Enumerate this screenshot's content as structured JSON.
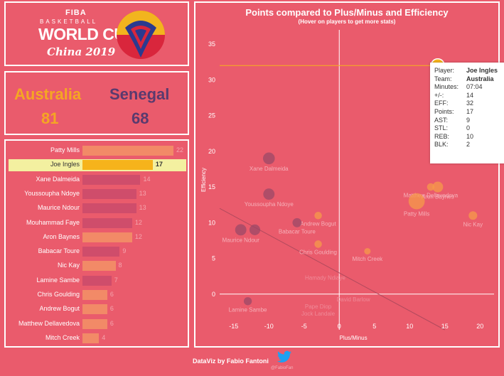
{
  "logo": {
    "fiba": "FIBA",
    "basketball": "BASKETBALL",
    "world_cup": "WORLD CUP",
    "china": "China 2019"
  },
  "match": {
    "team_a": "Australia",
    "team_b": "Senegal",
    "score_a": "81",
    "score_b": "68"
  },
  "colors": {
    "australia": "#f5a623",
    "senegal": "#5a3a6e",
    "aus_bar": "#f28a67",
    "sen_bar": "#cf4d6b",
    "highlight_bar": "#f6b31b",
    "aus_point": "#f59a4a",
    "sen_point": "#9b4867"
  },
  "points_bars": {
    "max": 22,
    "players": [
      {
        "name": "Patty Mills",
        "points": 22,
        "team": "Australia"
      },
      {
        "name": "Joe Ingles",
        "points": 17,
        "team": "Australia",
        "highlight": true
      },
      {
        "name": "Xane Dalmeida",
        "points": 14,
        "team": "Senegal"
      },
      {
        "name": "Youssoupha Ndoye",
        "points": 13,
        "team": "Senegal"
      },
      {
        "name": "Maurice Ndour",
        "points": 13,
        "team": "Senegal"
      },
      {
        "name": "Mouhammad Faye",
        "points": 12,
        "team": "Senegal"
      },
      {
        "name": "Aron Baynes",
        "points": 12,
        "team": "Australia"
      },
      {
        "name": "Babacar Toure",
        "points": 9,
        "team": "Senegal"
      },
      {
        "name": "Nic Kay",
        "points": 8,
        "team": "Australia"
      },
      {
        "name": "Lamine Sambe",
        "points": 7,
        "team": "Senegal"
      },
      {
        "name": "Chris Goulding",
        "points": 6,
        "team": "Australia"
      },
      {
        "name": "Andrew Bogut",
        "points": 6,
        "team": "Australia"
      },
      {
        "name": "Matthew Dellavedova",
        "points": 6,
        "team": "Australia"
      },
      {
        "name": "Mitch Creek",
        "points": 4,
        "team": "Australia"
      }
    ]
  },
  "chart_data": {
    "type": "scatter",
    "title": "Points compared to Plus/Minus and Efficiency",
    "subtitle": "(Hover on players to get more stats)",
    "xlabel": "Plus/Minus",
    "ylabel": "Efficiency",
    "xlim": [
      -17,
      22
    ],
    "ylim": [
      -5,
      37
    ],
    "xticks": [
      -15,
      -10,
      -5,
      0,
      5,
      10,
      15,
      20
    ],
    "yticks": [
      0,
      5,
      10,
      15,
      20,
      25,
      30,
      35
    ],
    "reference_line_y": 32,
    "trend_line": {
      "x": [
        -17,
        15
      ],
      "y": [
        12,
        -5
      ]
    },
    "points": [
      {
        "name": "Joe Ingles",
        "x": 14,
        "y": 32,
        "team": "Australia",
        "size": 17,
        "label": "Joe Ingles"
      },
      {
        "name": "Xane Dalmeida",
        "x": -10,
        "y": 19,
        "team": "Senegal",
        "size": 14,
        "label": "Xane Dalmeida"
      },
      {
        "name": "Youssoupha Ndoye",
        "x": -10,
        "y": 14,
        "team": "Senegal",
        "size": 13,
        "label": "Youssoupha Ndoye"
      },
      {
        "name": "Matthew Dellavedova",
        "x": 13,
        "y": 15,
        "team": "Australia",
        "size": 6,
        "label": "Matthew Dellavedova"
      },
      {
        "name": "Aron Baynes",
        "x": 14,
        "y": 15,
        "team": "Australia",
        "size": 12,
        "label": "Aron Baynes"
      },
      {
        "name": "Patty Mills",
        "x": 11,
        "y": 13,
        "team": "Australia",
        "size": 22,
        "label": "Patty Mills"
      },
      {
        "name": "Andrew Bogut",
        "x": -3,
        "y": 11,
        "team": "Australia",
        "size": 6,
        "label": "Andrew Bogut"
      },
      {
        "name": "Nic Kay",
        "x": 19,
        "y": 11,
        "team": "Australia",
        "size": 8,
        "label": "Nic Kay"
      },
      {
        "name": "Maurice Ndour",
        "x": -14,
        "y": 9,
        "team": "Senegal",
        "size": 13,
        "label": "Maurice Ndour"
      },
      {
        "name": "Mouhammad Faye",
        "x": -12,
        "y": 9,
        "team": "Senegal",
        "size": 12,
        "label": ""
      },
      {
        "name": "Babacar Toure",
        "x": -6,
        "y": 10,
        "team": "Senegal",
        "size": 9,
        "label": "Babacar Toure"
      },
      {
        "name": "Chris Goulding",
        "x": -3,
        "y": 7,
        "team": "Australia",
        "size": 6,
        "label": "Chris Goulding"
      },
      {
        "name": "Mitch Creek",
        "x": 4,
        "y": 6,
        "team": "Australia",
        "size": 4,
        "label": "Mitch Creek"
      },
      {
        "name": "Lamine Sambe",
        "x": -13,
        "y": -1,
        "team": "Senegal",
        "size": 7,
        "label": "Lamine Sambe"
      }
    ],
    "ghost_labels": [
      {
        "text": "Hamady Ndiaye",
        "x": -2,
        "y": 2
      },
      {
        "text": "David Barlow",
        "x": 2,
        "y": -1
      },
      {
        "text": "Pape Diop",
        "x": -3,
        "y": -2
      },
      {
        "text": "Jock Landale",
        "x": -3,
        "y": -3
      }
    ]
  },
  "tooltip": {
    "rows": [
      {
        "key": "Player:",
        "value": "Joe Ingles"
      },
      {
        "key": "Team:",
        "value": "Australia"
      },
      {
        "key": "Minutes:",
        "value": "07:04"
      },
      {
        "key": "+/-:",
        "value": "14"
      },
      {
        "key": "EFF:",
        "value": "32"
      },
      {
        "key": "Points:",
        "value": "17"
      },
      {
        "key": "AST:",
        "value": "9"
      },
      {
        "key": "STL:",
        "value": "0"
      },
      {
        "key": "REB:",
        "value": "10"
      },
      {
        "key": "BLK:",
        "value": "2"
      }
    ]
  },
  "footer": {
    "credit": "DataViz by Fabio Fantoni",
    "handle": "@FabioFan"
  }
}
